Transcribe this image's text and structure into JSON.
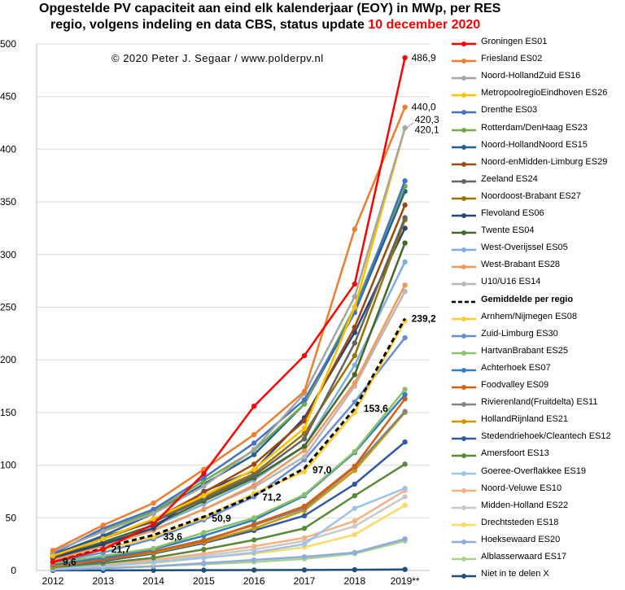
{
  "title": {
    "line1": "Opgestelde PV capaciteit aan eind elk kalenderjaar (EOY) in MWp, per RES",
    "line2_prefix": "regio, volgens indeling  en data CBS, status update ",
    "line2_date": "10 december 2020"
  },
  "copyright": "© 2020 Peter J. Segaar / www.polderpv.nl",
  "colors": {
    "date_red": "#ff0000",
    "grid": "#d9d9d9",
    "axis": "#bfbfbf"
  },
  "chart_data": {
    "type": "line",
    "categories": [
      "2012",
      "2013",
      "2014",
      "2015",
      "2016",
      "2017",
      "2018",
      "2019**"
    ],
    "ylim": [
      0,
      500
    ],
    "yticks": [
      "0",
      "50",
      "100",
      "150",
      "200",
      "250",
      "300",
      "350",
      "400",
      "450",
      "500"
    ],
    "legend_position": "right",
    "series": [
      {
        "name": "Groningen ES01",
        "color": "#ff0000",
        "values": [
          8,
          20,
          44,
          92,
          156,
          204,
          272,
          486.9
        ]
      },
      {
        "name": "Friesland ES02",
        "color": "#ed7d31",
        "values": [
          19,
          43,
          64,
          96,
          129,
          170,
          324,
          440.0
        ]
      },
      {
        "name": "Noord-HollandZuid ES16",
        "color": "#a5a5a5",
        "values": [
          18,
          37,
          54,
          80,
          115,
          168,
          260,
          420.3
        ]
      },
      {
        "name": "MetropoolregioEindhoven ES26",
        "color": "#ffc000",
        "values": [
          14,
          30,
          49,
          71,
          96,
          135,
          250,
          420.1
        ]
      },
      {
        "name": "Drenthe ES03",
        "color": "#4472c4",
        "values": [
          16,
          40,
          58,
          88,
          121,
          162,
          245,
          370
        ]
      },
      {
        "name": "Rotterdam/DenHaag ES23",
        "color": "#70ad47",
        "values": [
          17,
          38,
          56,
          85,
          114,
          158,
          250,
          365
        ]
      },
      {
        "name": "Noord-HollandNoord ES15",
        "color": "#255e91",
        "values": [
          15,
          33,
          54,
          82,
          110,
          158,
          245,
          360
        ]
      },
      {
        "name": "Noord-enMidden-Limburg ES29",
        "color": "#9e480e",
        "values": [
          13,
          30,
          48,
          74,
          101,
          142,
          231,
          347
        ]
      },
      {
        "name": "Zeeland ES24",
        "color": "#636363",
        "values": [
          15,
          32,
          46,
          68,
          90,
          125,
          216,
          335
        ]
      },
      {
        "name": "Noordoost-Brabant ES27",
        "color": "#997300",
        "values": [
          14,
          30,
          47,
          70,
          92,
          130,
          204,
          333
        ]
      },
      {
        "name": "Flevoland ES06",
        "color": "#264478",
        "values": [
          12,
          25,
          40,
          75,
          95,
          145,
          226,
          325
        ]
      },
      {
        "name": "Twente ES04",
        "color": "#43682b",
        "values": [
          12,
          27,
          43,
          66,
          88,
          118,
          186,
          311
        ]
      },
      {
        "name": "West-Overijssel ES05",
        "color": "#7cafdd",
        "values": [
          12,
          26,
          42,
          63,
          86,
          118,
          195,
          293
        ]
      },
      {
        "name": "West-Brabant ES28",
        "color": "#f1975a",
        "values": [
          10,
          23,
          38,
          58,
          81,
          114,
          178,
          271
        ]
      },
      {
        "name": "U10/U16 ES14",
        "color": "#b7b7b7",
        "values": [
          11,
          24,
          39,
          58,
          79,
          108,
          175,
          265
        ]
      },
      {
        "name": "Gemiddelde per regio",
        "color": "#000000",
        "dashed": true,
        "values": [
          9.6,
          21.7,
          33.6,
          50.9,
          71.2,
          97.0,
          153.6,
          239.2
        ]
      },
      {
        "name": "Arnhem/Nijmegen ES08",
        "color": "#ffcd33",
        "values": [
          9,
          20,
          32,
          50,
          73,
          94,
          150,
          237
        ]
      },
      {
        "name": "Zuid-Limburg ES30",
        "color": "#698ed0",
        "values": [
          8,
          17,
          30,
          48,
          70,
          105,
          160,
          221
        ]
      },
      {
        "name": "HartvanBrabant ES25",
        "color": "#8cc168",
        "values": [
          7,
          14,
          21,
          36,
          50,
          72,
          113,
          172
        ]
      },
      {
        "name": "Achterhoek ES07",
        "color": "#327dc2",
        "values": [
          6,
          12,
          20,
          33,
          48,
          71,
          112,
          167
        ]
      },
      {
        "name": "Foodvalley ES09",
        "color": "#d26012",
        "values": [
          5,
          10,
          18,
          28,
          44,
          61,
          99,
          163
        ]
      },
      {
        "name": "Rivierenland(Fruitdelta) ES11",
        "color": "#848484",
        "values": [
          5,
          11,
          18,
          29,
          43,
          59,
          98,
          151
        ]
      },
      {
        "name": "HollandRijnland ES21",
        "color": "#cc9a00",
        "values": [
          4,
          10,
          17,
          27,
          40,
          57,
          95,
          150
        ]
      },
      {
        "name": "Stedendriehoek/Cleantech ES12",
        "color": "#335aa1",
        "values": [
          4,
          9,
          16,
          26,
          38,
          52,
          82,
          122
        ]
      },
      {
        "name": "Amersfoort ES13",
        "color": "#5a8a39",
        "values": [
          3,
          7,
          12,
          20,
          29,
          40,
          71,
          101
        ]
      },
      {
        "name": "Goeree-Overflakkee ES19",
        "color": "#9dc3e6",
        "values": [
          2,
          4,
          8,
          12,
          17,
          25,
          59,
          78
        ]
      },
      {
        "name": "Noord-Veluwe ES10",
        "color": "#f4b183",
        "values": [
          3,
          6,
          10,
          16,
          23,
          31,
          47,
          76
        ]
      },
      {
        "name": "Midden-Holland ES22",
        "color": "#c9c9c9",
        "values": [
          2,
          5,
          9,
          14,
          20,
          28,
          42,
          70
        ]
      },
      {
        "name": "Drechtsteden ES18",
        "color": "#ffd966",
        "values": [
          2,
          4,
          7,
          12,
          16,
          22,
          34,
          62
        ]
      },
      {
        "name": "Hoeksewaard ES20",
        "color": "#8faadc",
        "values": [
          1,
          2,
          4,
          7,
          10,
          13,
          17,
          30
        ]
      },
      {
        "name": "Alblasserwaard ES17",
        "color": "#a9d18e",
        "values": [
          1,
          2,
          4,
          6,
          8,
          11,
          16,
          28
        ]
      },
      {
        "name": "Niet in te delen X",
        "color": "#1f4e79",
        "values": [
          0.1,
          0.1,
          0.2,
          0.3,
          0.4,
          0.5,
          0.7,
          1.0
        ]
      }
    ],
    "data_labels": [
      {
        "text": "9,6",
        "value": 9.6,
        "category": "2012"
      },
      {
        "text": "21,7",
        "value": 21.7,
        "category": "2013"
      },
      {
        "text": "33,6",
        "value": 33.6,
        "category": "2014"
      },
      {
        "text": "50,9",
        "value": 50.9,
        "category": "2015"
      },
      {
        "text": "71,2",
        "value": 71.2,
        "category": "2016"
      },
      {
        "text": "97,0",
        "value": 97.0,
        "category": "2017"
      },
      {
        "text": "153,6",
        "value": 153.6,
        "category": "2018"
      },
      {
        "text": "239,2",
        "value": 239.2,
        "category": "2019**"
      },
      {
        "text": "486,9",
        "value": 486.9,
        "category": "2019**"
      },
      {
        "text": "440,0",
        "value": 440.0,
        "category": "2019**"
      },
      {
        "text": "420,3",
        "value": 420.3,
        "category": "2019**"
      },
      {
        "text": "420,1",
        "value": 420.1,
        "category": "2019**"
      }
    ]
  }
}
